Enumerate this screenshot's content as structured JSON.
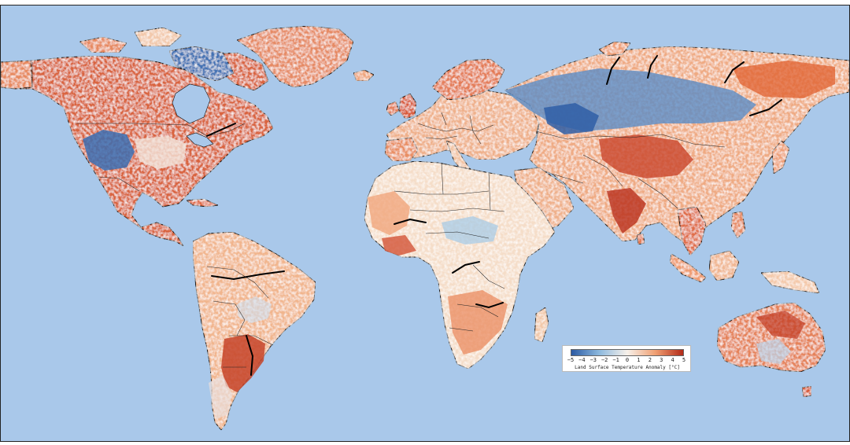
{
  "legend": {
    "label": "Land Surface Temperature Anomaly [°C]",
    "ticks": [
      "−5",
      "−4",
      "−3",
      "−2",
      "−1",
      "0",
      "1",
      "2",
      "3",
      "4",
      "5"
    ],
    "min": -5,
    "max": 5
  },
  "colors": {
    "ocean": "#a9c8ea",
    "strong_cold": "#2b5aa3",
    "cold": "#8db9de",
    "neutral": "#f7f1ea",
    "warm": "#f0a073",
    "strong_warm": "#b22a18"
  }
}
